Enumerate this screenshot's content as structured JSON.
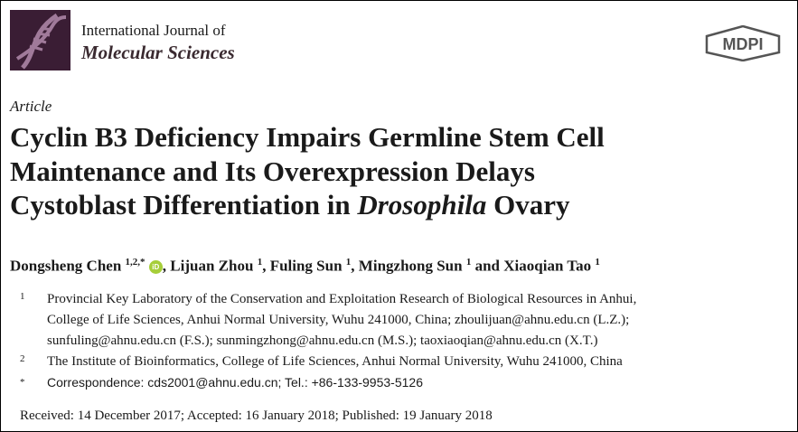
{
  "journal": {
    "line1": "International Journal of",
    "line2": "Molecular Sciences",
    "publisher_logo": "MDPI",
    "brand_color": "#3a1d34"
  },
  "article_type": "Article",
  "title": {
    "line1": "Cyclin B3 Deficiency Impairs Germline Stem Cell",
    "line2": "Maintenance and Its Overexpression Delays",
    "line3_pre": "Cystoblast Differentiation in ",
    "line3_italic": "Drosophila",
    "line3_post": " Ovary"
  },
  "authors": [
    {
      "name": "Dongsheng Chen",
      "sup": "1,2,*",
      "orcid": "iD"
    },
    {
      "name": "Lijuan Zhou",
      "sup": "1"
    },
    {
      "name": "Fuling Sun",
      "sup": "1"
    },
    {
      "name": "Mingzhong Sun",
      "sup": "1"
    },
    {
      "name": "Xiaoqian Tao",
      "sup": "1"
    }
  ],
  "author_sep": ", ",
  "author_and": " and ",
  "affiliations": [
    {
      "marker": "1",
      "lines": [
        "Provincial Key Laboratory of the Conservation and Exploitation Research of Biological Resources in Anhui,",
        "College of Life Sciences, Anhui Normal University, Wuhu 241000, China; zhoulijuan@ahnu.edu.cn (L.Z.);",
        "sunfuling@ahnu.edu.cn (F.S.); sunmingzhong@ahnu.edu.cn (M.S.); taoxiaoqian@ahnu.edu.cn (X.T.)"
      ]
    },
    {
      "marker": "2",
      "lines": [
        "The Institute of Bioinformatics, College of Life Sciences, Anhui Normal University, Wuhu 241000, China"
      ]
    },
    {
      "marker": "*",
      "lines": [
        "Correspondence: cds2001@ahnu.edu.cn; Tel.: +86-133-9953-5126"
      ]
    }
  ],
  "dates": "Received: 14 December 2017; Accepted: 16 January 2018; Published: 19 January 2018"
}
